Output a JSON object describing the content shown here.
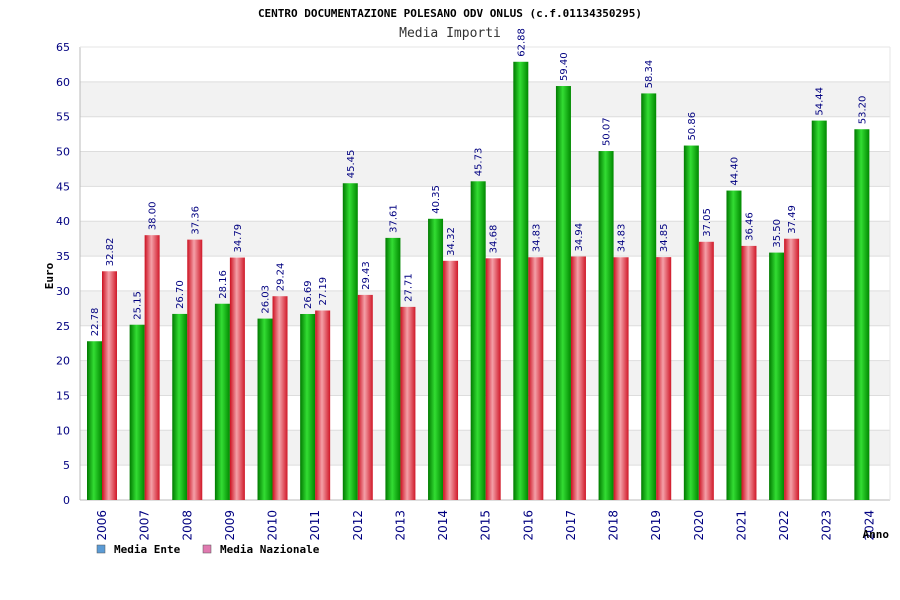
{
  "chart_data": {
    "type": "bar",
    "title": "CENTRO DOCUMENTAZIONE POLESANO ODV ONLUS (c.f.01134350295)",
    "subtitle": "Media Importi",
    "ylabel": "Euro",
    "xlabel": "Anno",
    "ylim": [
      0,
      65
    ],
    "yticks": [
      0,
      5,
      10,
      15,
      20,
      25,
      30,
      35,
      40,
      45,
      50,
      55,
      60,
      65
    ],
    "grid": "horizontal-bands",
    "legend_position": "bottom-left",
    "categories": [
      "2006",
      "2007",
      "2008",
      "2009",
      "2010",
      "2011",
      "2012",
      "2013",
      "2014",
      "2015",
      "2016",
      "2017",
      "2018",
      "2019",
      "2020",
      "2021",
      "2022",
      "2023",
      "2024"
    ],
    "series": [
      {
        "name": "Media Ente",
        "color": "#00aa00",
        "legend_color": "#5b9bd5",
        "values": [
          22.78,
          25.15,
          26.7,
          28.16,
          26.03,
          26.69,
          45.45,
          37.61,
          40.35,
          45.73,
          62.88,
          59.4,
          50.07,
          58.34,
          50.86,
          44.4,
          35.5,
          54.44,
          53.2
        ],
        "labels": [
          "22.78",
          "25.15",
          "26.70",
          "28.16",
          "26.03",
          "26.69",
          "45.45",
          "37.61",
          "40.35",
          "45.73",
          "62.88",
          "59.40",
          "50.07",
          "58.34",
          "50.86",
          "44.40",
          "35.50",
          "54.44",
          "53.20"
        ]
      },
      {
        "name": "Media Nazionale",
        "color": "#e83030",
        "legend_color": "#e07ab0",
        "values": [
          32.82,
          38.0,
          37.36,
          34.79,
          29.24,
          27.19,
          29.43,
          27.71,
          34.32,
          34.68,
          34.83,
          34.94,
          34.83,
          34.85,
          37.05,
          36.46,
          37.49,
          null,
          null
        ],
        "labels": [
          "32.82",
          "38.00",
          "37.36",
          "34.79",
          "29.24",
          "27.19",
          "29.43",
          "27.71",
          "34.32",
          "34.68",
          "34.83",
          "34.94",
          "34.83",
          "34.85",
          "37.05",
          "36.46",
          "37.49",
          null,
          null
        ]
      }
    ]
  }
}
